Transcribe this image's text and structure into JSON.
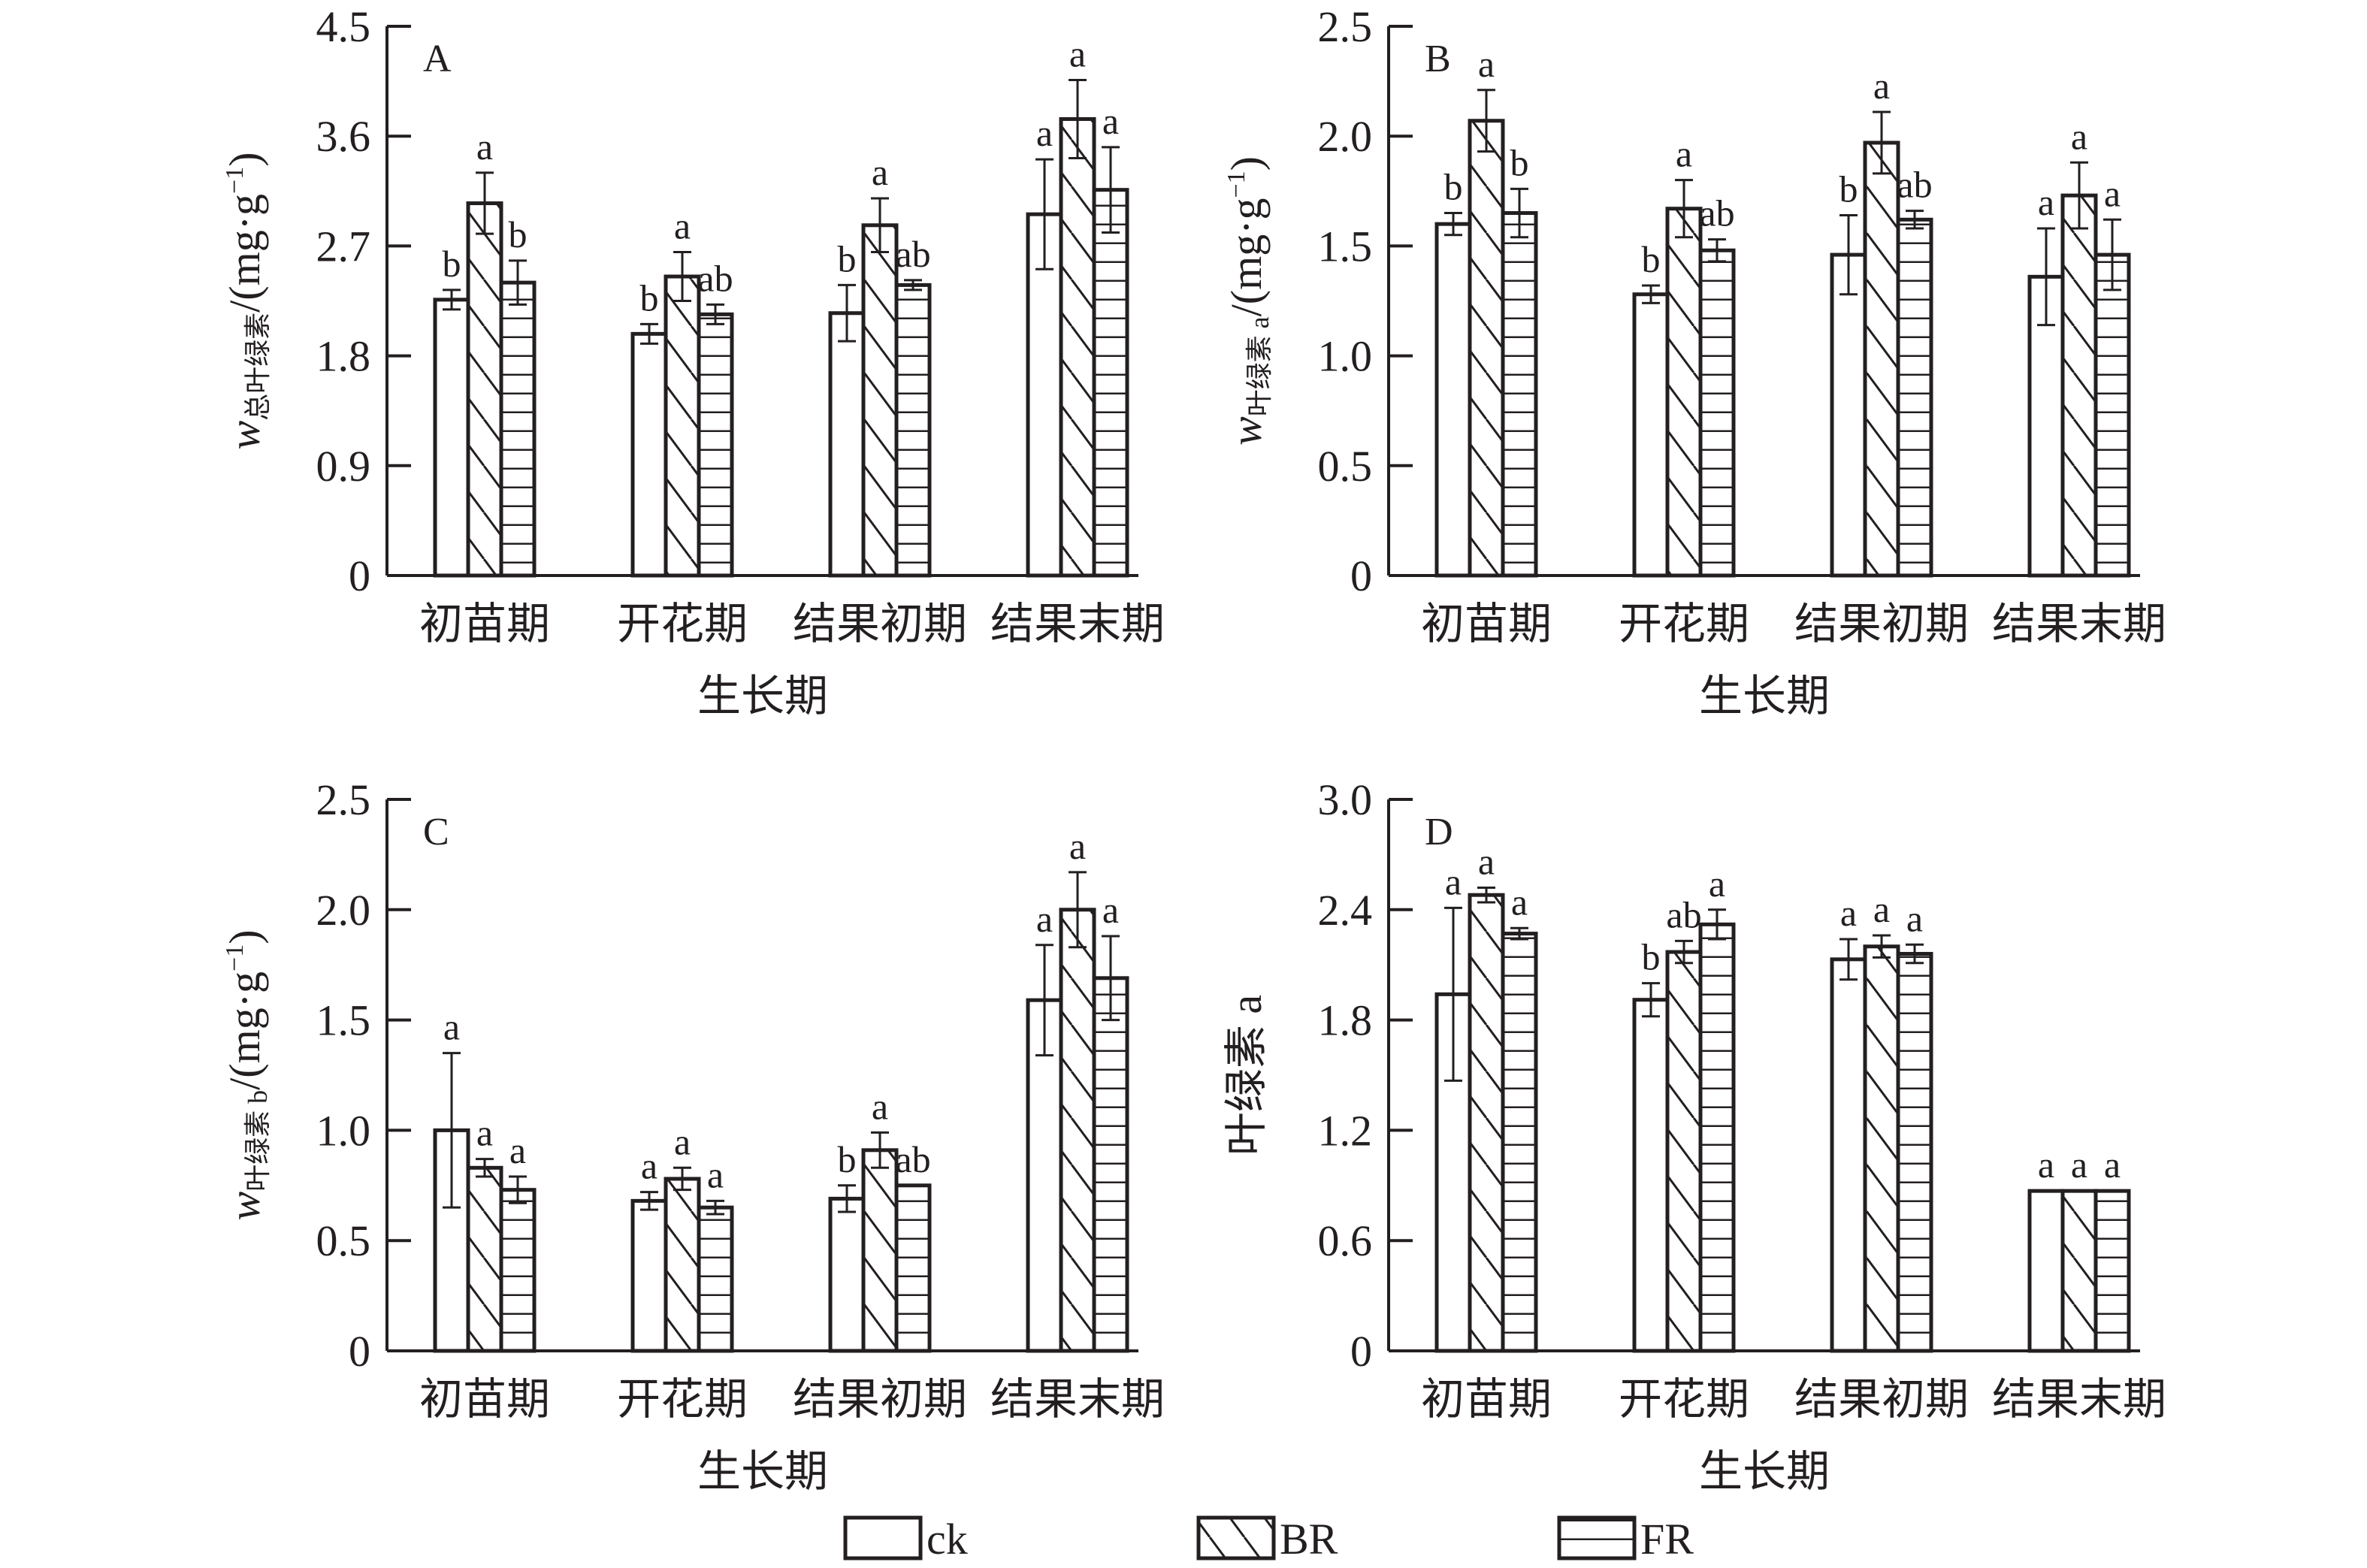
{
  "figure": {
    "legend": [
      {
        "key": "ck",
        "label": "ck",
        "pattern": "none"
      },
      {
        "key": "BR",
        "label": "BR",
        "pattern": "diagonal"
      },
      {
        "key": "FR",
        "label": "FR",
        "pattern": "horizontal"
      }
    ],
    "colors": {
      "ink": "#231f20",
      "fill": "#ffffff"
    }
  },
  "chart_data": [
    {
      "type": "bar",
      "panel": "A",
      "title": "",
      "xlabel": "生长期",
      "ylabel_main": "w",
      "ylabel_sub": "总叶绿素",
      "ylabel_unit": "/(mg·g",
      "ylabel_sup": "−1",
      "ylabel_close": ")",
      "ylim": [
        0,
        4.5
      ],
      "yticks": [
        0,
        0.9,
        1.8,
        2.7,
        3.6,
        4.5
      ],
      "ytick_labels": [
        "0",
        "0.9",
        "1.8",
        "2.7",
        "3.6",
        "4.5"
      ],
      "categories": [
        "初苗期",
        "开花期",
        "结果初期",
        "结果末期"
      ],
      "series": [
        {
          "name": "ck",
          "values": [
            2.26,
            1.98,
            2.15,
            2.96
          ],
          "errors": [
            0.08,
            0.08,
            0.23,
            0.45
          ],
          "labels": [
            "b",
            "b",
            "b",
            "a"
          ]
        },
        {
          "name": "BR",
          "values": [
            3.05,
            2.45,
            2.87,
            3.74
          ],
          "errors": [
            0.25,
            0.2,
            0.22,
            0.32
          ],
          "labels": [
            "a",
            "a",
            "a",
            "a"
          ]
        },
        {
          "name": "FR",
          "values": [
            2.4,
            2.14,
            2.38,
            3.16
          ],
          "errors": [
            0.18,
            0.08,
            0.04,
            0.35
          ],
          "labels": [
            "b",
            "ab",
            "ab",
            "a"
          ]
        }
      ],
      "legend": "bottom"
    },
    {
      "type": "bar",
      "panel": "B",
      "title": "",
      "xlabel": "生长期",
      "ylabel_main": "w",
      "ylabel_sub": "叶绿素 a",
      "ylabel_unit": "/(mg·g",
      "ylabel_sup": "−1",
      "ylabel_close": ")",
      "ylim": [
        0,
        2.5
      ],
      "yticks": [
        0,
        0.5,
        1.0,
        1.5,
        2.0,
        2.5
      ],
      "ytick_labels": [
        "0",
        "0.5",
        "1.0",
        "1.5",
        "2.0",
        "2.5"
      ],
      "categories": [
        "初苗期",
        "开花期",
        "结果初期",
        "结果末期"
      ],
      "series": [
        {
          "name": "ck",
          "values": [
            1.6,
            1.28,
            1.46,
            1.36
          ],
          "errors": [
            0.05,
            0.04,
            0.18,
            0.22
          ],
          "labels": [
            "b",
            "b",
            "b",
            "a"
          ]
        },
        {
          "name": "BR",
          "values": [
            2.07,
            1.67,
            1.97,
            1.73
          ],
          "errors": [
            0.14,
            0.13,
            0.14,
            0.15
          ],
          "labels": [
            "a",
            "a",
            "a",
            "a"
          ]
        },
        {
          "name": "FR",
          "values": [
            1.65,
            1.48,
            1.62,
            1.46
          ],
          "errors": [
            0.11,
            0.05,
            0.04,
            0.16
          ],
          "labels": [
            "b",
            "ab",
            "ab",
            "a"
          ]
        }
      ],
      "legend": "bottom"
    },
    {
      "type": "bar",
      "panel": "C",
      "title": "",
      "xlabel": "生长期",
      "ylabel_main": "w",
      "ylabel_sub": "叶绿素 b",
      "ylabel_unit": "/(mg·g",
      "ylabel_sup": "−1",
      "ylabel_close": ")",
      "ylim": [
        0,
        2.5
      ],
      "yticks": [
        0,
        0.5,
        1.0,
        1.5,
        2.0,
        2.5
      ],
      "ytick_labels": [
        "0",
        "0.5",
        "1.0",
        "1.5",
        "2.0",
        "2.5"
      ],
      "categories": [
        "初苗期",
        "开花期",
        "结果初期",
        "结果末期"
      ],
      "series": [
        {
          "name": "ck",
          "values": [
            1.0,
            0.68,
            0.69,
            1.59
          ],
          "errors": [
            0.35,
            0.04,
            0.06,
            0.25
          ],
          "labels": [
            "a",
            "a",
            "b",
            "a"
          ]
        },
        {
          "name": "BR",
          "values": [
            0.83,
            0.78,
            0.91,
            2.0
          ],
          "errors": [
            0.04,
            0.05,
            0.08,
            0.17
          ],
          "labels": [
            "a",
            "a",
            "a",
            "a"
          ]
        },
        {
          "name": "FR",
          "values": [
            0.73,
            0.65,
            0.75,
            1.69
          ],
          "errors": [
            0.06,
            0.03,
            0.0,
            0.19
          ],
          "labels": [
            "a",
            "a",
            "ab",
            "a"
          ]
        }
      ],
      "legend": "bottom"
    },
    {
      "type": "bar",
      "panel": "D",
      "title": "",
      "xlabel": "生长期",
      "ylabel_main": "叶绿素 a",
      "ylabel_sub": "",
      "ylabel_unit": "",
      "ylabel_sup": "",
      "ylabel_close": "",
      "ylim": [
        0,
        3.0
      ],
      "yticks": [
        0,
        0.6,
        1.2,
        1.8,
        2.4,
        3.0
      ],
      "ytick_labels": [
        "0",
        "0.6",
        "1.2",
        "1.8",
        "2.4",
        "3.0"
      ],
      "categories": [
        "初苗期",
        "开花期",
        "结果初期",
        "结果末期"
      ],
      "series": [
        {
          "name": "ck",
          "values": [
            1.94,
            1.91,
            2.13,
            0.87
          ],
          "errors": [
            0.47,
            0.09,
            0.11,
            0.0
          ],
          "labels": [
            "a",
            "b",
            "a",
            "a"
          ]
        },
        {
          "name": "BR",
          "values": [
            2.48,
            2.17,
            2.2,
            0.87
          ],
          "errors": [
            0.04,
            0.06,
            0.06,
            0.0
          ],
          "labels": [
            "a",
            "ab",
            "a",
            "a"
          ]
        },
        {
          "name": "FR",
          "values": [
            2.27,
            2.32,
            2.16,
            0.87
          ],
          "errors": [
            0.03,
            0.08,
            0.05,
            0.0
          ],
          "labels": [
            "a",
            "a",
            "a",
            "a"
          ]
        }
      ],
      "legend": "bottom"
    }
  ]
}
